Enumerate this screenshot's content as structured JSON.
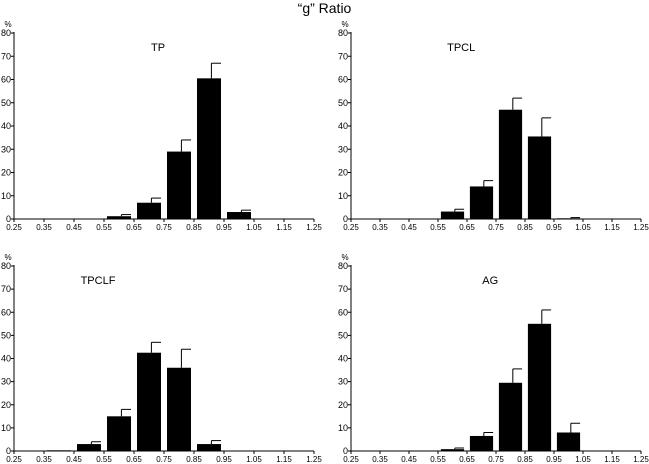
{
  "figure_title": "“g” Ratio",
  "chart_data": [
    {
      "type": "bar",
      "title": "TP",
      "ylabel": "%",
      "xlabel": "",
      "ylim": [
        0,
        80
      ],
      "yticks": [
        "0",
        "10",
        "20",
        "30",
        "40",
        "50",
        "60",
        "70",
        "80"
      ],
      "xlim": [
        0.25,
        1.25
      ],
      "xticks": [
        "0.25",
        "0.35",
        "0.45",
        "0.55",
        "0.65",
        "0.75",
        "0.85",
        "0.95",
        "1.05",
        "1.15",
        "1.25"
      ],
      "bar_centers": [
        0.6,
        0.7,
        0.8,
        0.9,
        1.0
      ],
      "values": [
        1.2,
        7,
        29,
        60.5,
        3
      ],
      "errors": [
        0.7,
        2,
        5,
        6.5,
        0.8
      ]
    },
    {
      "type": "bar",
      "title": "TPCL",
      "ylabel": "%",
      "xlabel": "",
      "ylim": [
        0,
        80
      ],
      "yticks": [
        "0",
        "10",
        "20",
        "30",
        "40",
        "50",
        "60",
        "70",
        "80"
      ],
      "xlim": [
        0.25,
        1.25
      ],
      "xticks": [
        "0.25",
        "0.35",
        "0.45",
        "0.55",
        "0.65",
        "0.75",
        "0.85",
        "0.95",
        "1.05",
        "1.15",
        "1.25"
      ],
      "bar_centers": [
        0.5,
        0.6,
        0.7,
        0.8,
        0.9,
        1.0
      ],
      "values": [
        0.2,
        3.2,
        14,
        47,
        35.5,
        0.3
      ],
      "errors": [
        0,
        1,
        2.5,
        5,
        8,
        0.3
      ]
    },
    {
      "type": "bar",
      "title": "TPCLF",
      "ylabel": "%",
      "xlabel": "",
      "ylim": [
        0,
        80
      ],
      "yticks": [
        "0",
        "10",
        "20",
        "30",
        "40",
        "50",
        "60",
        "70",
        "80"
      ],
      "xlim": [
        0.25,
        1.25
      ],
      "xticks": [
        "0.25",
        "0.35",
        "0.45",
        "0.55",
        "0.65",
        "0.75",
        "0.85",
        "0.95",
        "1.05",
        "1.15",
        "1.25"
      ],
      "bar_centers": [
        0.4,
        0.5,
        0.6,
        0.7,
        0.8,
        0.9
      ],
      "values": [
        0.3,
        3,
        15,
        42.5,
        36,
        3
      ],
      "errors": [
        0,
        1,
        3,
        4.5,
        8,
        1.5
      ]
    },
    {
      "type": "bar",
      "title": "AG",
      "ylabel": "%",
      "xlabel": "",
      "ylim": [
        0,
        80
      ],
      "yticks": [
        "0",
        "10",
        "20",
        "30",
        "40",
        "50",
        "60",
        "70",
        "80"
      ],
      "xlim": [
        0.25,
        1.25
      ],
      "xticks": [
        "0.25",
        "0.35",
        "0.45",
        "0.55",
        "0.65",
        "0.75",
        "0.85",
        "0.95",
        "1.05",
        "1.15",
        "1.25"
      ],
      "bar_centers": [
        0.5,
        0.6,
        0.7,
        0.8,
        0.9,
        1.0
      ],
      "values": [
        0.2,
        0.8,
        6.5,
        29.5,
        55,
        8
      ],
      "errors": [
        0,
        0.5,
        1.5,
        6,
        6,
        4
      ]
    }
  ]
}
